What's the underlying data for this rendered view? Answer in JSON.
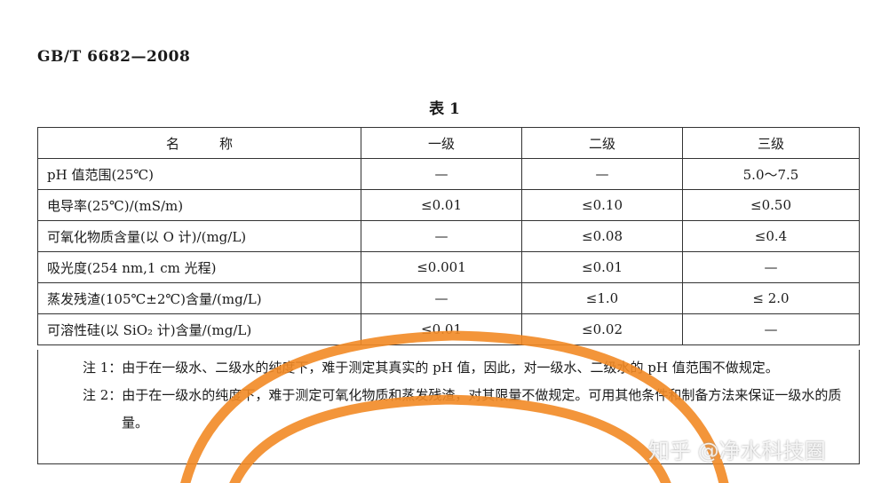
{
  "header": {
    "standard": "GB/T 6682—2008",
    "table_caption": "表 1"
  },
  "table": {
    "columns": [
      "名　　　称",
      "一级",
      "二级",
      "三级"
    ],
    "rows": [
      [
        "pH 值范围(25℃)",
        "—",
        "—",
        "5.0～7.5"
      ],
      [
        "电导率(25℃)/(mS/m)",
        "≤0.01",
        "≤0.10",
        "≤0.50"
      ],
      [
        "可氧化物质含量(以 O 计)/(mg/L)",
        "—",
        "≤0.08",
        "≤0.4"
      ],
      [
        "吸光度(254 nm,1 cm 光程)",
        "≤0.001",
        "≤0.01",
        "—"
      ],
      [
        "蒸发残渣(105℃±2℃)含量/(mg/L)",
        "—",
        "≤1.0",
        "≤ 2.0"
      ],
      [
        "可溶性硅(以 SiO₂ 计)含量/(mg/L)",
        "≤0.01",
        "≤0.02",
        "—"
      ]
    ]
  },
  "notes": [
    "注 1：由于在一级水、二级水的纯度下，难于测定其真实的 pH 值，因此，对一级水、二级水的 pH 值范围不做规定。",
    "注 2：由于在一级水的纯度下，难于测定可氧化物质和蒸发残渣，对其限量不做规定。可用其他条件和制备方法来保证一级水的质量。"
  ],
  "watermark": "知乎 @净水科技圈",
  "colors": {
    "overlay_arc": "#f28a25",
    "text": "#1a1a1a"
  }
}
